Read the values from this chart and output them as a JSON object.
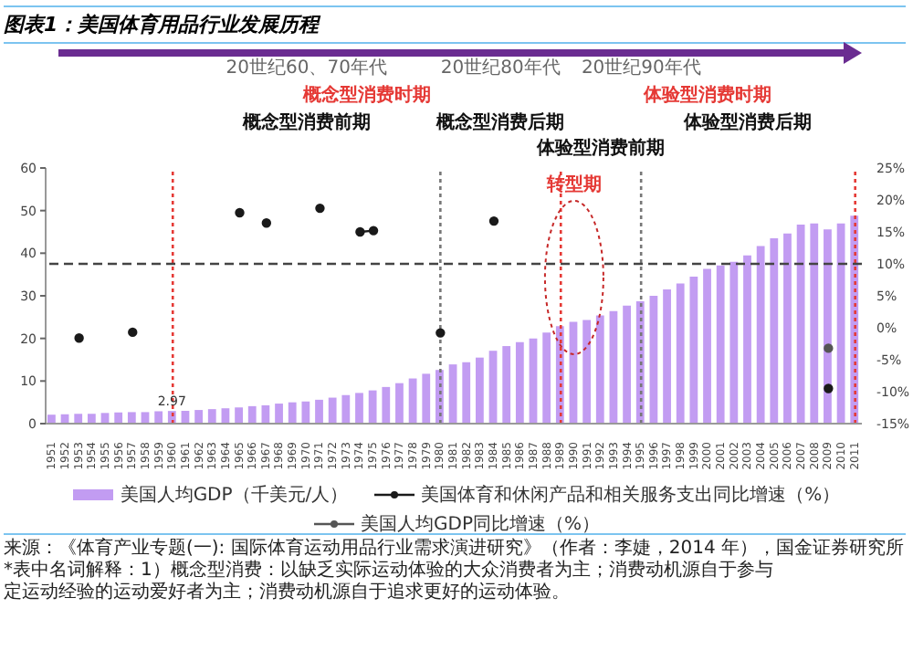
{
  "chart_data": {
    "type": "bar",
    "title": "图表1：美国体育用品行业发展历程",
    "categories": [
      "1951",
      "1952",
      "1953",
      "1954",
      "1955",
      "1956",
      "1957",
      "1958",
      "1959",
      "1960",
      "1961",
      "1962",
      "1963",
      "1964",
      "1965",
      "1966",
      "1967",
      "1968",
      "1969",
      "1970",
      "1971",
      "1972",
      "1973",
      "1974",
      "1975",
      "1976",
      "1977",
      "1978",
      "1979",
      "1980",
      "1981",
      "1982",
      "1983",
      "1984",
      "1985",
      "1986",
      "1987",
      "1988",
      "1989",
      "1990",
      "1991",
      "1992",
      "1993",
      "1994",
      "1995",
      "1996",
      "1997",
      "1998",
      "1999",
      "2000",
      "2001",
      "2002",
      "2003",
      "2004",
      "2005",
      "2006",
      "2007",
      "2008",
      "2009",
      "2010",
      "2011"
    ],
    "series": [
      {
        "name": "美国人均GDP（千美元/人）",
        "color": "#c29cf2",
        "values": [
          2.1,
          2.2,
          2.3,
          2.3,
          2.5,
          2.6,
          2.7,
          2.7,
          2.9,
          2.97,
          3.0,
          3.2,
          3.4,
          3.6,
          3.8,
          4.1,
          4.3,
          4.7,
          5.0,
          5.2,
          5.6,
          6.1,
          6.7,
          7.2,
          7.8,
          8.6,
          9.5,
          10.6,
          11.7,
          12.6,
          13.9,
          14.4,
          15.5,
          17.1,
          18.2,
          19.1,
          20.0,
          21.4,
          22.9,
          23.9,
          24.3,
          25.4,
          26.4,
          27.7,
          28.7,
          30.0,
          31.5,
          32.9,
          34.5,
          36.3,
          37.1,
          38.0,
          39.5,
          41.7,
          43.5,
          44.6,
          46.7,
          47.0,
          45.6,
          47.0,
          48.8
        ],
        "value_labels": [
          null,
          null,
          null,
          null,
          null,
          null,
          null,
          null,
          null,
          "2.97",
          null,
          null,
          null,
          null,
          null,
          null,
          null,
          null,
          null,
          null,
          null,
          null,
          null,
          null,
          null,
          null,
          null,
          null,
          null,
          null,
          null,
          null,
          null,
          null,
          null,
          null,
          null,
          null,
          null,
          null,
          null,
          null,
          null,
          null,
          null,
          null,
          null,
          null,
          null,
          null,
          null,
          null,
          null,
          null,
          null,
          null,
          null,
          null,
          null,
          null,
          null
        ]
      },
      {
        "name": "美国体育和休闲产品和相关服务支出同比增速（%）",
        "type": "line",
        "axis": "y2",
        "color": "#1a1a1a",
        "values": [
          null,
          null,
          -1.6,
          null,
          null,
          null,
          -0.7,
          null,
          null,
          null,
          null,
          null,
          null,
          null,
          18,
          null,
          16.4,
          null,
          null,
          null,
          18.7,
          null,
          null,
          15,
          15.2,
          null,
          null,
          null,
          null,
          -0.8,
          null,
          null,
          null,
          16.7,
          null,
          null,
          null,
          null,
          null,
          null,
          null,
          null,
          null,
          null,
          null,
          null,
          null,
          null,
          null,
          null,
          null,
          null,
          null,
          null,
          null,
          null,
          null,
          null,
          -9.5,
          null,
          null
        ]
      },
      {
        "name": "美国人均GDP同比增速（%）",
        "type": "line",
        "axis": "y2",
        "color": "#555555",
        "values": [
          null,
          null,
          null,
          null,
          null,
          null,
          null,
          null,
          null,
          null,
          null,
          null,
          null,
          null,
          null,
          null,
          null,
          null,
          null,
          null,
          null,
          null,
          null,
          null,
          null,
          null,
          null,
          null,
          null,
          null,
          null,
          null,
          null,
          null,
          null,
          null,
          null,
          null,
          null,
          null,
          null,
          null,
          null,
          null,
          null,
          null,
          null,
          null,
          null,
          null,
          null,
          null,
          null,
          null,
          null,
          null,
          null,
          null,
          -3.2,
          null,
          null
        ]
      }
    ],
    "ylim": [
      0,
      60
    ],
    "yticks": [
      0,
      10,
      20,
      30,
      40,
      50,
      60
    ],
    "y2lim": [
      -15,
      25
    ],
    "y2ticks": [
      {
        "value": -15,
        "label": "-15%"
      },
      {
        "value": -10,
        "label": "-10%"
      },
      {
        "value": -5,
        "label": "-5%"
      },
      {
        "value": 0,
        "label": "0%"
      },
      {
        "value": 5,
        "label": "5%"
      },
      {
        "value": 10,
        "label": "10%"
      },
      {
        "value": 15,
        "label": "15%"
      },
      {
        "value": 20,
        "label": "20%"
      },
      {
        "value": 25,
        "label": "25%"
      }
    ],
    "ref_lines": [
      {
        "axis": "x",
        "value": "1960",
        "color": "#e53935",
        "line_style": "dotted"
      },
      {
        "axis": "x",
        "value": "1980",
        "color": "#777777",
        "line_style": "dotted"
      },
      {
        "axis": "x",
        "value": "1989",
        "color": "#e53935",
        "line_style": "dotted"
      },
      {
        "axis": "x",
        "value": "1995",
        "color": "#777777",
        "line_style": "dotted"
      },
      {
        "axis": "x",
        "value": "2011",
        "color": "#e53935",
        "line_style": "dotted"
      },
      {
        "axis": "y2",
        "value": 10,
        "color": "#444444",
        "line_style": "dashed"
      }
    ],
    "annotations": [
      "20世纪60、70年代",
      "20世纪80年代",
      "20世纪90年代",
      "概念型消费时期",
      "体验型消费时期",
      "概念型消费前期",
      "概念型消费后期",
      "体验型消费前期",
      "体验型消费后期",
      "转型期",
      "来源：《体育产业专题(一): 国际体育运动用品行业需求演进研究》（作者：李婕，2014 年），国金证券研究所",
      "*表中名词解释：1）概念型消费：以缺乏实际运动体验的大众消费者为主；消费动机源自于参与",
      "定运动经验的运动爱好者为主；消费动机源自于追求更好的运动体验。"
    ],
    "legend": "bottom",
    "marker": "circle",
    "grid": false
  }
}
